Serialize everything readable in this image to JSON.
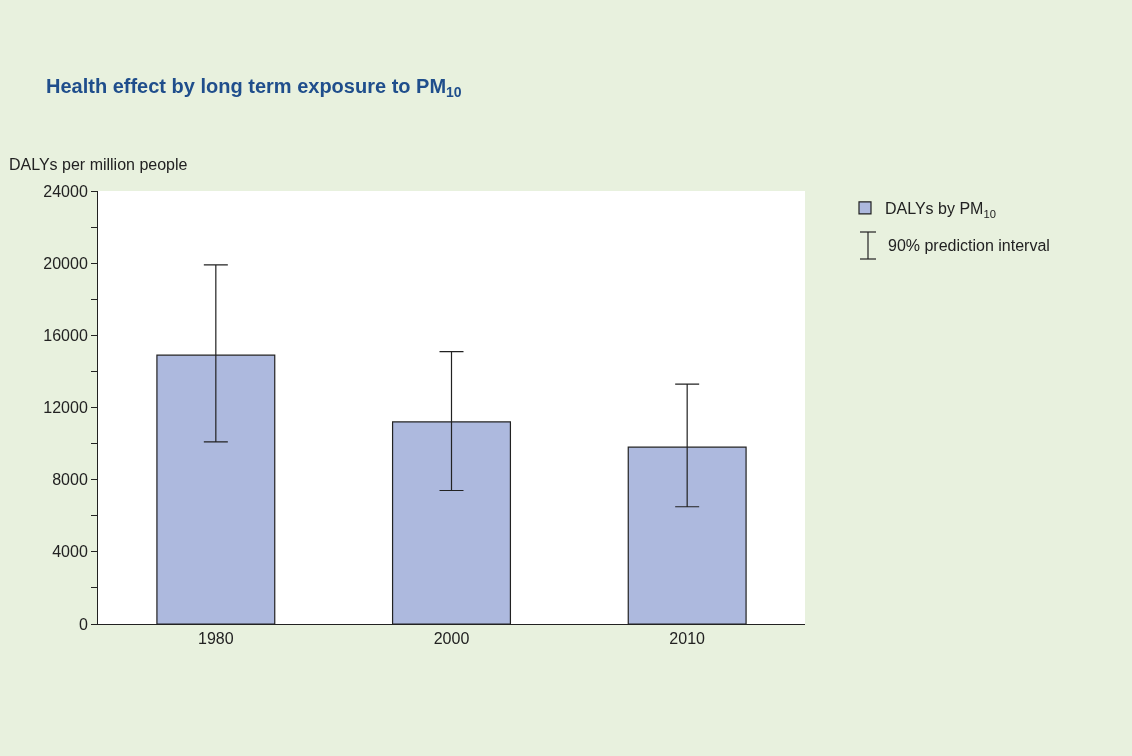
{
  "chart_data": {
    "type": "bar",
    "title": "Health effect by long term exposure to PM$_{10}$",
    "ylabel": "DALYs per million people",
    "categories": [
      "1980",
      "2000",
      "2010"
    ],
    "series": [
      {
        "name": "DALYs by PM$_{10}$",
        "color": "#adb9de",
        "values": [
          14900,
          11200,
          9800
        ],
        "errors": [
          [
            10100,
            19900
          ],
          [
            7400,
            15100
          ],
          [
            6500,
            13300
          ]
        ]
      }
    ],
    "annotations": [
      "90% prediction interval"
    ],
    "ylim": [
      0,
      24000
    ],
    "yticks": [
      0,
      {
        "value": 2000,
        "label": null
      },
      4000,
      {
        "value": 6000,
        "label": null
      },
      8000,
      {
        "value": 10000,
        "label": null
      },
      12000,
      {
        "value": 14000,
        "label": null
      },
      16000,
      {
        "value": 18000,
        "label": null
      },
      20000,
      {
        "value": 22000,
        "label": null
      },
      24000
    ],
    "legend": "top right"
  }
}
